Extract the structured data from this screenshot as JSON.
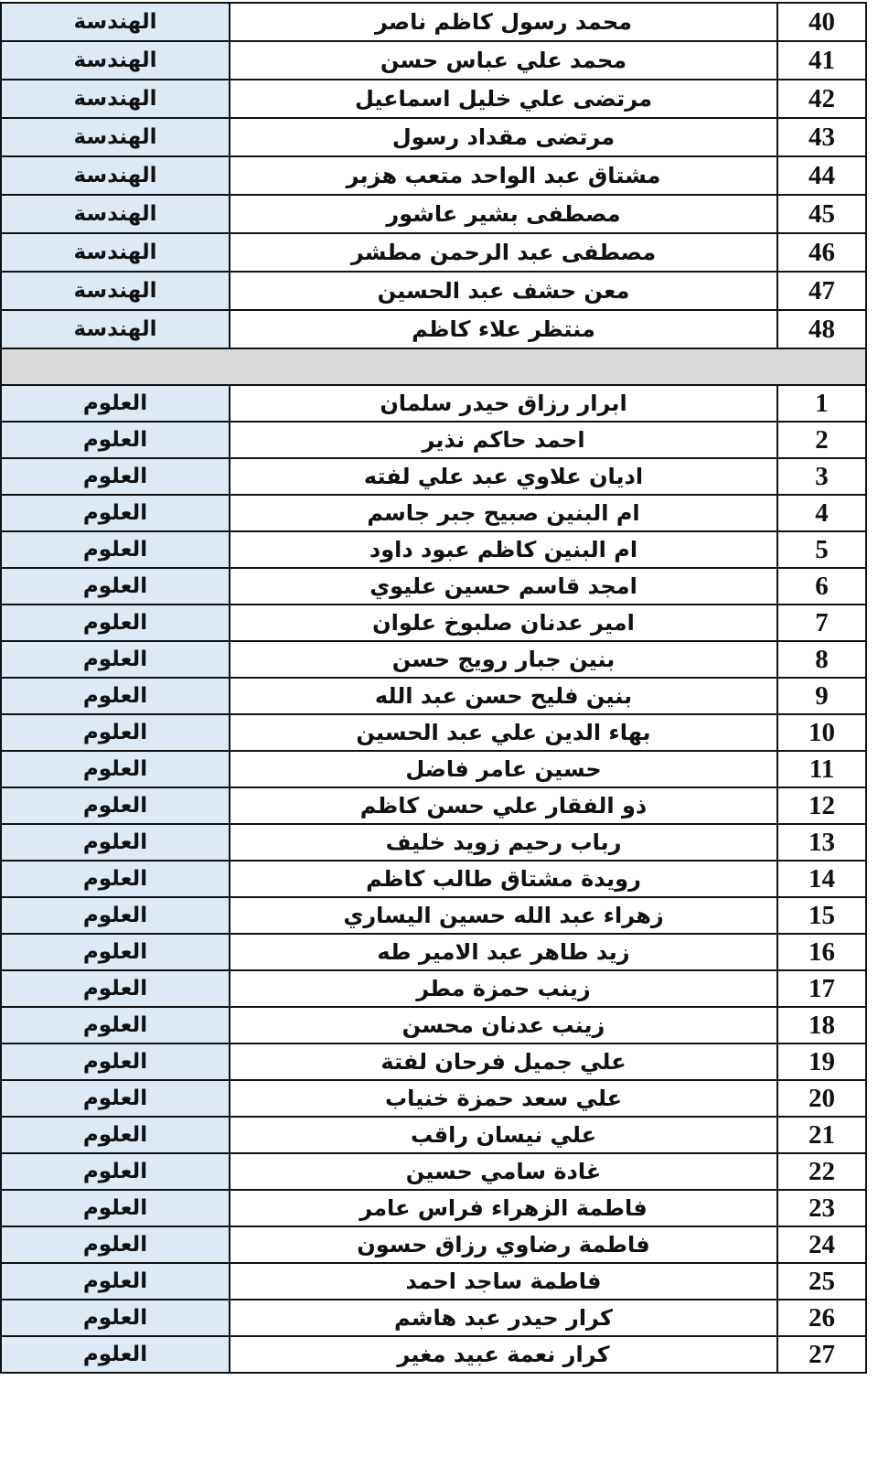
{
  "colors": {
    "department_bg": "#dde9f5",
    "separator_bg": "#d9d9d9"
  },
  "engineering": {
    "department": "الهندسة",
    "rows": [
      {
        "no": "40",
        "name": "محمد رسول كاظم ناصر"
      },
      {
        "no": "41",
        "name": "محمد علي عباس حسن"
      },
      {
        "no": "42",
        "name": "مرتضى علي خليل اسماعيل"
      },
      {
        "no": "43",
        "name": "مرتضى مقداد رسول"
      },
      {
        "no": "44",
        "name": "مشتاق عبد الواحد متعب هزبر"
      },
      {
        "no": "45",
        "name": "مصطفى بشير عاشور"
      },
      {
        "no": "46",
        "name": "مصطفى عبد الرحمن مطشر"
      },
      {
        "no": "47",
        "name": "معن حشف عبد الحسين"
      },
      {
        "no": "48",
        "name": "منتظر علاء كاظم"
      }
    ]
  },
  "sciences": {
    "department": "العلوم",
    "rows": [
      {
        "no": "1",
        "name": "ابرار رزاق حيدر سلمان"
      },
      {
        "no": "2",
        "name": "احمد حاكم نذير"
      },
      {
        "no": "3",
        "name": "اديان علاوي عبد علي لفته"
      },
      {
        "no": "4",
        "name": "ام البنين صبيح جبر جاسم"
      },
      {
        "no": "5",
        "name": "ام البنين كاظم عبود داود"
      },
      {
        "no": "6",
        "name": "امجد قاسم حسين عليوي"
      },
      {
        "no": "7",
        "name": "امير عدنان صلبوخ علوان"
      },
      {
        "no": "8",
        "name": "بنين جبار رويج حسن"
      },
      {
        "no": "9",
        "name": "بنين فليح حسن عبد الله"
      },
      {
        "no": "10",
        "name": "بهاء الدين علي عبد الحسين"
      },
      {
        "no": "11",
        "name": "حسين عامر فاضل"
      },
      {
        "no": "12",
        "name": "ذو الفقار علي حسن كاظم"
      },
      {
        "no": "13",
        "name": "رباب رحيم زويد خليف"
      },
      {
        "no": "14",
        "name": "رويدة مشتاق طالب كاظم"
      },
      {
        "no": "15",
        "name": "زهراء عبد الله حسين اليساري"
      },
      {
        "no": "16",
        "name": "زيد طاهر عبد الامير طه"
      },
      {
        "no": "17",
        "name": "زينب حمزة مطر"
      },
      {
        "no": "18",
        "name": "زينب عدنان محسن"
      },
      {
        "no": "19",
        "name": "علي جميل فرحان لفتة"
      },
      {
        "no": "20",
        "name": "علي سعد حمزة خنياب"
      },
      {
        "no": "21",
        "name": "علي نيسان راقب"
      },
      {
        "no": "22",
        "name": "غادة سامي حسين"
      },
      {
        "no": "23",
        "name": "فاطمة الزهراء فراس عامر"
      },
      {
        "no": "24",
        "name": "فاطمة رضاوي رزاق حسون"
      },
      {
        "no": "25",
        "name": "فاطمة ساجد احمد"
      },
      {
        "no": "26",
        "name": "كرار حيدر عبد هاشم"
      },
      {
        "no": "27",
        "name": "كرار نعمة عبيد مغير"
      }
    ]
  }
}
